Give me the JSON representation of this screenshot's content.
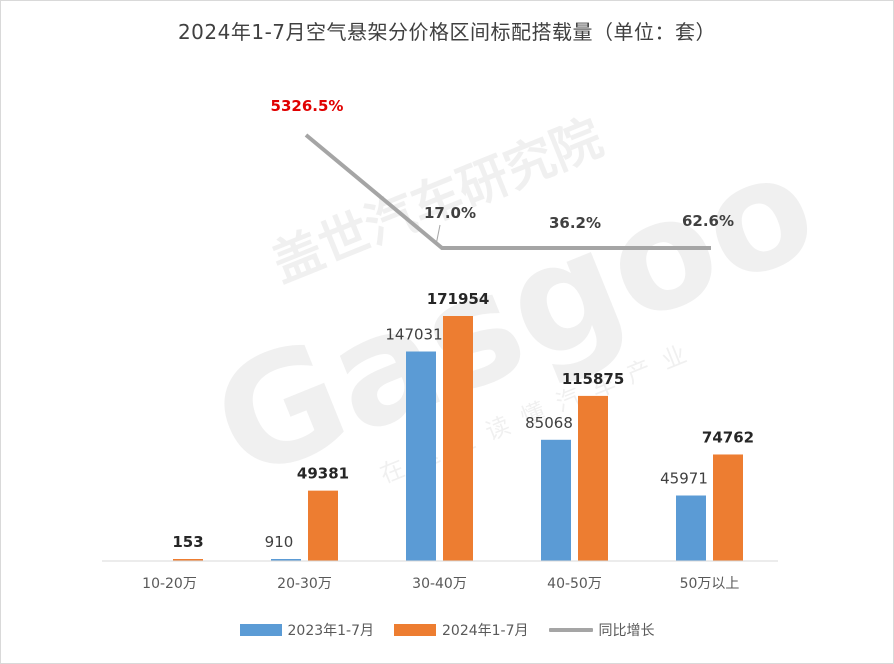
{
  "chart_data": {
    "type": "bar",
    "title": "2024年1-7月空气悬架分价格区间标配搭载量（单位：套）",
    "categories": [
      "10-20万",
      "20-30万",
      "30-40万",
      "40-50万",
      "50万以上"
    ],
    "series": [
      {
        "name": "2023年1-7月",
        "kind": "bar",
        "color": "#5b9bd5",
        "values": [
          0,
          910,
          147031,
          85068,
          45971
        ],
        "labels": [
          "",
          "910",
          "147031",
          "85068",
          "45971"
        ]
      },
      {
        "name": "2024年1-7月",
        "kind": "bar",
        "color": "#ed7d31",
        "values": [
          153,
          49381,
          171954,
          115875,
          74762
        ],
        "labels": [
          "153",
          "49381",
          "171954",
          "115875",
          "74762"
        ]
      },
      {
        "name": "同比增长",
        "kind": "line",
        "color": "#a5a5a5",
        "values": [
          null,
          5326.5,
          17.0,
          36.2,
          62.6
        ],
        "labels": [
          "",
          "5326.5%",
          "17.0%",
          "36.2%",
          "62.6%"
        ]
      }
    ],
    "ylim": [
      0,
      200000
    ],
    "grid": false,
    "legend": "bottom"
  },
  "watermark": {
    "brand_cn": "盖世汽车研究院",
    "brand_en": "Gasgoo",
    "slogan": "在这里读懂汽车产业"
  }
}
